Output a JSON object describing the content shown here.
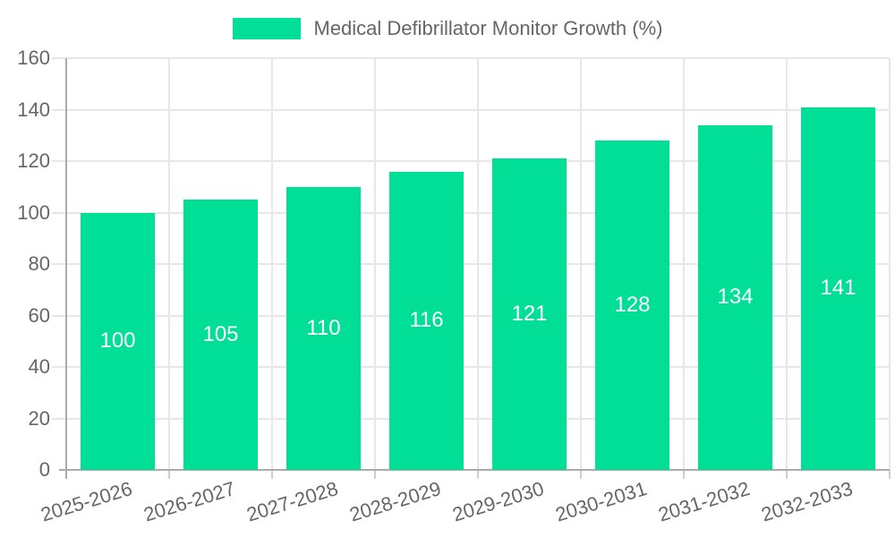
{
  "chart_data": {
    "type": "bar",
    "title": "Medical Defibrillator Monitor Growth (%)",
    "legend_position": "top",
    "categories": [
      "2025-2026",
      "2026-2027",
      "2027-2028",
      "2028-2029",
      "2029-2030",
      "2030-2031",
      "2031-2032",
      "2032-2033"
    ],
    "values": [
      100,
      105,
      110,
      116,
      121,
      128,
      134,
      141
    ],
    "value_labels": [
      "100",
      "105",
      "110",
      "116",
      "121",
      "128",
      "134",
      "141"
    ],
    "xlabel": "",
    "ylabel": "",
    "ylim": [
      0,
      160
    ],
    "yticks": [
      0,
      20,
      40,
      60,
      80,
      100,
      120,
      140,
      160
    ],
    "grid": true,
    "x_tick_rotation_deg": -17,
    "colors": {
      "bar": "#00DF95",
      "value_label": "#ffffff",
      "axis_text": "#666666",
      "legend_text": "#666666",
      "gridline": "#e7e7e7",
      "axis_line": "#ababab",
      "x_tick_mark": "#cfcfcf",
      "background": "#ffffff"
    }
  }
}
